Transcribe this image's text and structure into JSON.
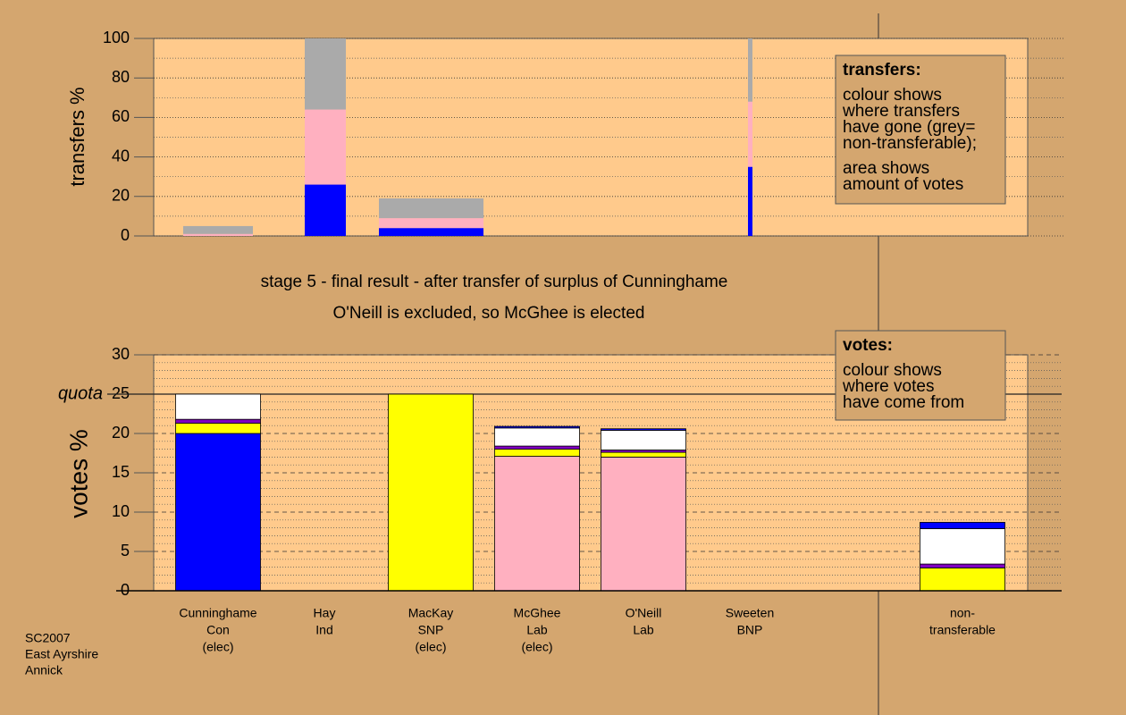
{
  "chart_data": [
    {
      "type": "bar",
      "stacked": true,
      "ylabel": "transfers %",
      "ylim": [
        0,
        100
      ],
      "yticks": [
        0,
        20,
        40,
        60,
        80,
        100
      ],
      "minor_yticks": [
        10,
        30,
        50,
        70,
        90
      ],
      "grid": true,
      "series": [
        {
          "color": "#0000ff",
          "values": [
            0,
            26,
            4,
            35
          ]
        },
        {
          "color": "#ffb0c0",
          "values": [
            1,
            38,
            5,
            33
          ]
        },
        {
          "color": "#aaaaaa",
          "values": [
            4,
            36,
            10,
            32
          ]
        }
      ],
      "annotation": {
        "heading": "transfers:",
        "paragraphs": [
          [
            "colour shows",
            "where transfers",
            "have gone (grey=",
            "non-transferable);"
          ],
          [
            "area shows",
            "amount of votes"
          ]
        ]
      }
    },
    {
      "type": "bar",
      "stacked": true,
      "title": "stage 5 - final result - after transfer of surplus of Cunninghame",
      "subtitle": "O'Neill is excluded, so McGhee is elected",
      "ylabel": "votes %",
      "ylim": [
        0,
        30
      ],
      "yticks": [
        0,
        5,
        10,
        15,
        20,
        25,
        30
      ],
      "minor_yticks": [
        1,
        2,
        3,
        4,
        6,
        7,
        8,
        9,
        11,
        12,
        13,
        14,
        16,
        17,
        18,
        19,
        21,
        22,
        23,
        24,
        26,
        27,
        28,
        29
      ],
      "grid": true,
      "quota": {
        "value": 25,
        "label": "quota"
      },
      "categories": [
        [
          "Cunninghame",
          "Con",
          "(elec)"
        ],
        [
          "Hay",
          "Ind"
        ],
        [
          "MacKay",
          "SNP",
          "(elec)"
        ],
        [
          "McGhee",
          "Lab",
          "(elec)"
        ],
        [
          "O'Neill",
          "Lab"
        ],
        [
          "Sweeten",
          "BNP"
        ],
        null,
        [
          "non-",
          "transferable"
        ]
      ],
      "series": [
        {
          "color": "#0000ff",
          "values": [
            20,
            0,
            0,
            0,
            0,
            0,
            null,
            0
          ]
        },
        {
          "color": "#ffb0c0",
          "values": [
            0,
            0,
            0,
            17.1,
            17,
            0,
            null,
            0
          ]
        },
        {
          "color": "#ffff00",
          "values": [
            1.3,
            0,
            25,
            0.9,
            0.6,
            0,
            null,
            2.9
          ]
        },
        {
          "color": "#8000c0",
          "values": [
            0.5,
            0,
            0,
            0.4,
            0.3,
            0,
            null,
            0.5
          ]
        },
        {
          "color": "#ffffff",
          "values": [
            3.2,
            0,
            0,
            2.3,
            2.5,
            0,
            null,
            4.5
          ]
        },
        {
          "color": "#0000ff",
          "values": [
            0,
            0,
            0,
            0.2,
            0.2,
            0,
            null,
            0.8
          ]
        }
      ],
      "annotation": {
        "heading": "votes:",
        "paragraphs": [
          [
            "colour shows",
            "where votes",
            "have come from"
          ]
        ]
      }
    }
  ],
  "footer": [
    "SC2007",
    "East Ayrshire",
    "Annick"
  ]
}
